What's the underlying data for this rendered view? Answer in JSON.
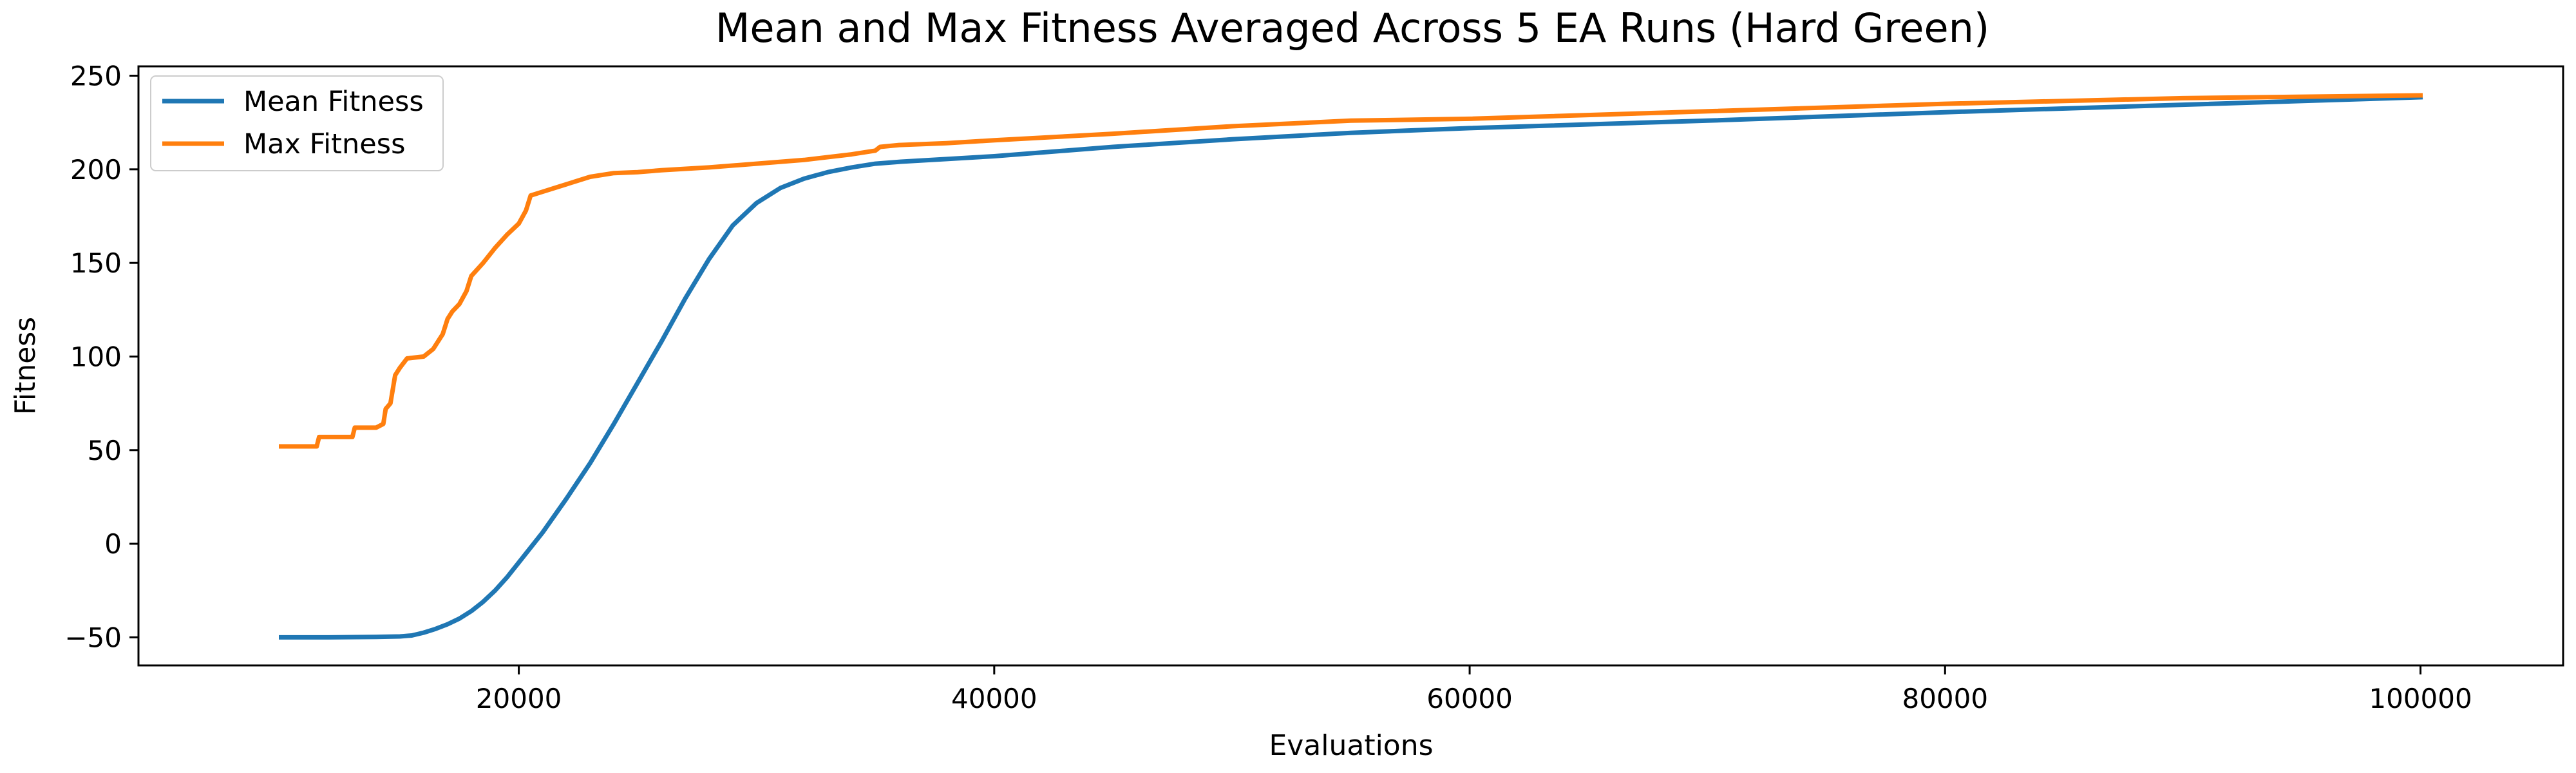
{
  "chart_data": {
    "type": "line",
    "title": "Mean and Max Fitness Averaged Across 5 EA Runs (Hard Green)",
    "xlabel": "Evaluations",
    "ylabel": "Fitness",
    "xlim": [
      4000,
      106000
    ],
    "ylim": [
      -65,
      255
    ],
    "xticks": [
      20000,
      40000,
      60000,
      80000,
      100000
    ],
    "yticks": [
      -50,
      0,
      50,
      100,
      150,
      200,
      250
    ],
    "grid": false,
    "legend_position": "top-left",
    "series": [
      {
        "name": "Mean Fitness",
        "color": "#1f77b4",
        "x": [
          10000,
          12000,
          14000,
          15000,
          15500,
          16000,
          16500,
          17000,
          17500,
          18000,
          18500,
          19000,
          19500,
          20000,
          21000,
          22000,
          23000,
          24000,
          25000,
          26000,
          27000,
          28000,
          29000,
          30000,
          31000,
          32000,
          33000,
          34000,
          35000,
          36000,
          38000,
          40000,
          45000,
          50000,
          55000,
          60000,
          70000,
          80000,
          90000,
          100000
        ],
        "y": [
          -50,
          -50,
          -49.8,
          -49.5,
          -49,
          -47.5,
          -45.5,
          -43,
          -40,
          -36,
          -31,
          -25,
          -18,
          -10,
          6,
          24,
          43,
          64,
          86,
          108,
          131,
          152,
          170,
          182,
          190,
          195,
          198.5,
          201,
          203,
          204,
          205.5,
          207,
          212,
          216,
          219.5,
          222,
          226,
          230.5,
          234.5,
          238.5
        ]
      },
      {
        "name": "Max Fitness",
        "color": "#ff7f0e",
        "x": [
          10000,
          11500,
          11600,
          12000,
          13000,
          13100,
          14000,
          14300,
          14400,
          14600,
          14800,
          15000,
          15300,
          16000,
          16400,
          16800,
          17000,
          17200,
          17500,
          17800,
          18000,
          18500,
          19000,
          19500,
          20000,
          20300,
          20500,
          21000,
          21500,
          22000,
          23000,
          24000,
          25000,
          26000,
          28000,
          30000,
          32000,
          34000,
          35000,
          35200,
          36000,
          38000,
          40000,
          45000,
          50000,
          55000,
          60000,
          70000,
          80000,
          90000,
          100000
        ],
        "y": [
          52,
          52,
          57,
          57,
          57,
          62,
          62,
          64,
          72,
          75,
          90,
          94,
          99,
          100,
          104,
          112,
          120,
          124,
          128,
          135,
          143,
          150,
          158,
          165,
          171,
          178,
          186,
          188,
          190,
          192,
          196,
          198,
          198.5,
          199.5,
          201,
          203,
          205,
          208,
          210,
          212,
          213,
          214,
          215.5,
          219,
          223,
          226,
          227,
          231,
          235,
          238,
          239.5
        ]
      }
    ]
  }
}
